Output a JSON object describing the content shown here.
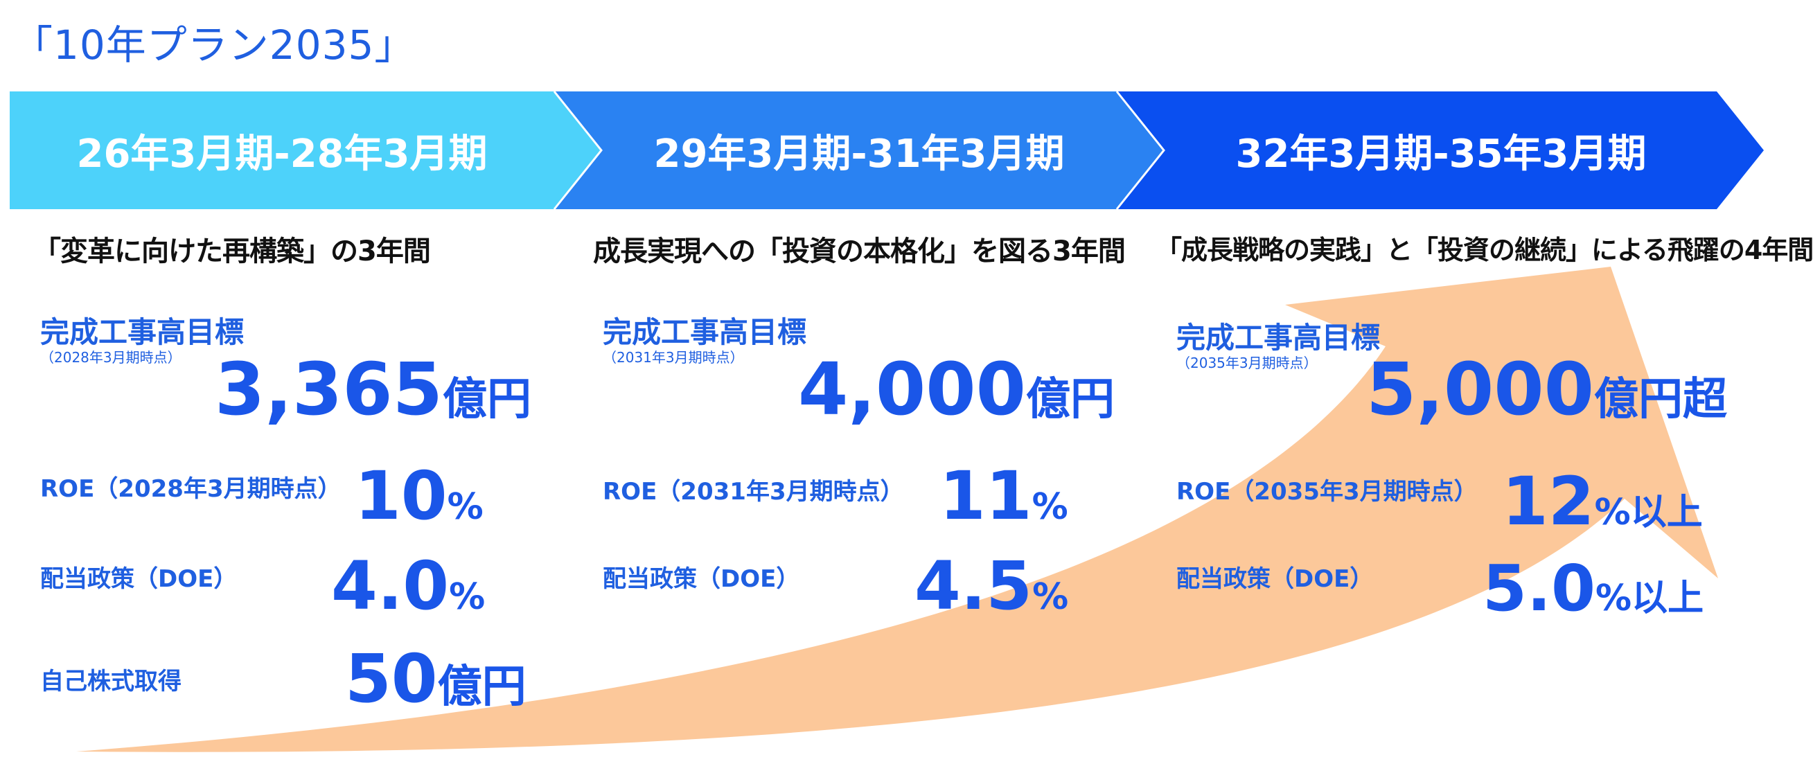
{
  "title": "「10年プラン2035」",
  "colors": {
    "phase1": "#4dd2fa",
    "phase2": "#2a82f2",
    "phase3": "#0a4ff0",
    "text_blue": "#1f5fe0",
    "arrow": "#fcc89a"
  },
  "phases": [
    {
      "period": "26年3月期-28年3月期",
      "heading": "「変革に向けた再構築」の3年間",
      "sales_label": "完成工事高目標",
      "sales_note": "（2028年3月期時点）",
      "sales_value": "3,365",
      "sales_unit": "億円",
      "roe_label": "ROE（2028年3月期時点）",
      "roe_value": "10",
      "roe_unit": "%",
      "doe_label": "配当政策（DOE）",
      "doe_value": "4.0",
      "doe_unit": "%",
      "buyback_label": "自己株式取得",
      "buyback_value": "50",
      "buyback_unit": "億円"
    },
    {
      "period": "29年3月期-31年3月期",
      "heading": "成長実現への「投資の本格化」を図る3年間",
      "sales_label": "完成工事高目標",
      "sales_note": "（2031年3月期時点）",
      "sales_value": "4,000",
      "sales_unit": "億円",
      "roe_label": "ROE（2031年3月期時点）",
      "roe_value": "11",
      "roe_unit": "%",
      "doe_label": "配当政策（DOE）",
      "doe_value": "4.5",
      "doe_unit": "%"
    },
    {
      "period": "32年3月期-35年3月期",
      "heading": "「成長戦略の実践」と「投資の継続」による飛躍の4年間",
      "sales_label": "完成工事高目標",
      "sales_note": "（2035年3月期時点）",
      "sales_value": "5,000",
      "sales_unit": "億円超",
      "roe_label": "ROE（2035年3月期時点）",
      "roe_value": "12",
      "roe_unit": "%以上",
      "doe_label": "配当政策（DOE）",
      "doe_value": "5.0",
      "doe_unit": "%以上"
    }
  ]
}
